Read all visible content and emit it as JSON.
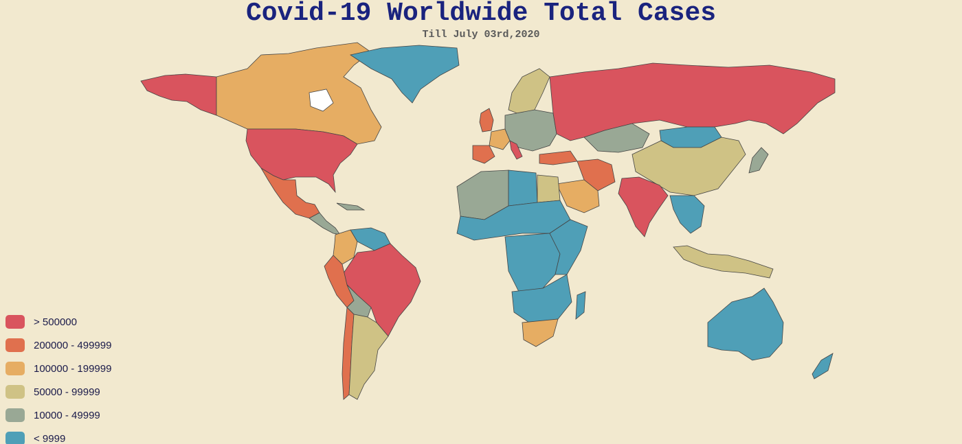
{
  "title": "Covid-19 Worldwide Total Cases",
  "subtitle": "Till July 03rd,2020",
  "colors": {
    "background": "#f2e9cf",
    "no_data": "#ffffff",
    "over_500000": "#d9545e",
    "b200000_499999": "#e0704e",
    "b100000_199999": "#e6ad63",
    "b50000_99999": "#cfc285",
    "b10000_49999": "#99a895",
    "under_9999": "#4f9fb7"
  },
  "legend": [
    {
      "label": "> 500000",
      "color": "#d9545e"
    },
    {
      "label": "200000 - 499999",
      "color": "#e0704e"
    },
    {
      "label": "100000 - 199999",
      "color": "#e6ad63"
    },
    {
      "label": "50000 - 99999",
      "color": "#cfc285"
    },
    {
      "label": "10000 - 49999",
      "color": "#99a895"
    },
    {
      "label": "< 9999",
      "color": "#4f9fb7"
    }
  ],
  "regions": [
    {
      "name": "usa",
      "bucket": "over_500000"
    },
    {
      "name": "alaska",
      "bucket": "over_500000"
    },
    {
      "name": "canada",
      "bucket": "b100000_199999"
    },
    {
      "name": "greenland",
      "bucket": "under_9999"
    },
    {
      "name": "mexico",
      "bucket": "b200000_499999"
    },
    {
      "name": "central-america",
      "bucket": "b10000_49999"
    },
    {
      "name": "colombia",
      "bucket": "b100000_199999"
    },
    {
      "name": "venezuela",
      "bucket": "under_9999"
    },
    {
      "name": "brazil",
      "bucket": "over_500000"
    },
    {
      "name": "peru",
      "bucket": "b200000_499999"
    },
    {
      "name": "chile",
      "bucket": "b200000_499999"
    },
    {
      "name": "argentina",
      "bucket": "b50000_99999"
    },
    {
      "name": "bolivia",
      "bucket": "b10000_49999"
    },
    {
      "name": "russia",
      "bucket": "over_500000"
    },
    {
      "name": "kazakhstan",
      "bucket": "b10000_49999"
    },
    {
      "name": "mongolia",
      "bucket": "under_9999"
    },
    {
      "name": "china",
      "bucket": "b50000_99999"
    },
    {
      "name": "india",
      "bucket": "over_500000"
    },
    {
      "name": "iran",
      "bucket": "b200000_499999"
    },
    {
      "name": "saudi-arabia",
      "bucket": "b100000_199999"
    },
    {
      "name": "turkey",
      "bucket": "b200000_499999"
    },
    {
      "name": "spain",
      "bucket": "b200000_499999"
    },
    {
      "name": "france",
      "bucket": "b100000_199999"
    },
    {
      "name": "uk",
      "bucket": "b200000_499999"
    },
    {
      "name": "scandinavia",
      "bucket": "b50000_99999"
    },
    {
      "name": "europe-east",
      "bucket": "b10000_49999"
    },
    {
      "name": "north-africa",
      "bucket": "b10000_49999"
    },
    {
      "name": "libya",
      "bucket": "under_9999"
    },
    {
      "name": "egypt",
      "bucket": "b50000_99999"
    },
    {
      "name": "sahel",
      "bucket": "under_9999"
    },
    {
      "name": "central-africa",
      "bucket": "under_9999"
    },
    {
      "name": "east-africa",
      "bucket": "under_9999"
    },
    {
      "name": "south-africa",
      "bucket": "b100000_199999"
    },
    {
      "name": "madagascar",
      "bucket": "under_9999"
    },
    {
      "name": "southeast-asia",
      "bucket": "under_9999"
    },
    {
      "name": "indonesia",
      "bucket": "b50000_99999"
    },
    {
      "name": "japan",
      "bucket": "b10000_49999"
    },
    {
      "name": "australia",
      "bucket": "under_9999"
    },
    {
      "name": "new-zealand",
      "bucket": "under_9999"
    }
  ]
}
